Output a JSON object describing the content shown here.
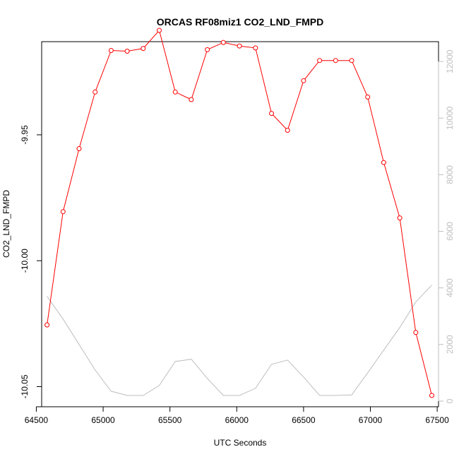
{
  "chart_data": {
    "type": "line",
    "title": "ORCAS RF08miz1 CO2_LND_FMPD",
    "xlabel": "UTC Seconds",
    "ylabel": "CO2_LND_FMPD",
    "xlim": [
      64540,
      67510
    ],
    "ylim": [
      -10.058,
      -9.913
    ],
    "y2lim": [
      -200,
      12700
    ],
    "x_ticks": [
      64500,
      65000,
      65500,
      66000,
      66500,
      67000,
      67500
    ],
    "y_ticks": [
      -9.95,
      -10.0,
      -10.05
    ],
    "y_tick_labels": [
      "-9.95",
      "-10.00",
      "-10.05"
    ],
    "y2_ticks": [
      0,
      2000,
      4000,
      6000,
      8000,
      10000,
      12000
    ],
    "grid": false,
    "colors": {
      "primary": "#ff0000",
      "secondary": "#bebebe",
      "axis": "#000000"
    },
    "series": [
      {
        "axis": "left",
        "style": "line+circle-markers",
        "color": "#ff0000",
        "x": [
          64580,
          64700,
          64820,
          64940,
          65060,
          65180,
          65300,
          65420,
          65540,
          65660,
          65780,
          65900,
          66020,
          66140,
          66260,
          66380,
          66500,
          66620,
          66740,
          66860,
          66980,
          67100,
          67220,
          67340,
          67460
        ],
        "values": [
          -10.0255,
          -9.9805,
          -9.9555,
          -9.933,
          -9.9165,
          -9.9168,
          -9.9157,
          -9.9085,
          -9.933,
          -9.936,
          -9.9162,
          -9.9133,
          -9.9147,
          -9.9155,
          -9.9415,
          -9.9482,
          -9.9285,
          -9.9205,
          -9.9205,
          -9.9205,
          -9.935,
          -9.961,
          -9.983,
          -10.0285,
          -10.0535
        ]
      },
      {
        "axis": "right",
        "style": "line",
        "color": "#bebebe",
        "x": [
          64580,
          64700,
          64820,
          64940,
          65060,
          65180,
          65300,
          65420,
          65540,
          65660,
          65780,
          65900,
          66020,
          66140,
          66260,
          66380,
          66500,
          66620,
          66740,
          66860,
          66980,
          67100,
          67220,
          67340,
          67460
        ],
        "values": [
          3700,
          2900,
          2000,
          1100,
          350,
          200,
          200,
          550,
          1400,
          1480,
          800,
          200,
          200,
          450,
          1300,
          1450,
          850,
          200,
          200,
          220,
          1000,
          1800,
          2600,
          3500,
          4100
        ]
      }
    ]
  }
}
